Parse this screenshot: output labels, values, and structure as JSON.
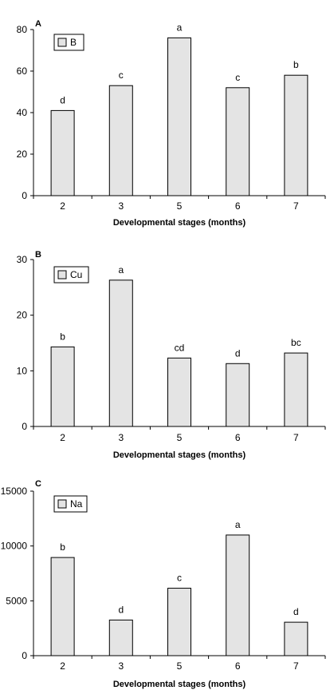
{
  "chart_data": [
    {
      "panel": "A",
      "type": "bar",
      "categories": [
        "2",
        "3",
        "5",
        "6",
        "7"
      ],
      "series": [
        {
          "name": "B",
          "values": [
            41,
            53,
            76,
            52,
            58
          ]
        }
      ],
      "significance": [
        "d",
        "c",
        "a",
        "c",
        "b"
      ],
      "xlabel": "Developmental stages  (months)",
      "ylabel": "",
      "ylim": [
        0,
        80
      ],
      "yticks": [
        "0",
        "20",
        "40",
        "60",
        "80"
      ],
      "grid": false,
      "legend_position": "top-left"
    },
    {
      "panel": "B",
      "type": "bar",
      "categories": [
        "2",
        "3",
        "5",
        "6",
        "7"
      ],
      "series": [
        {
          "name": "Cu",
          "values": [
            14.3,
            26.3,
            12.3,
            11.3,
            13.2
          ]
        }
      ],
      "significance": [
        "b",
        "a",
        "cd",
        "d",
        "bc"
      ],
      "xlabel": "Developmental stages  (months)",
      "ylabel": "",
      "ylim": [
        0,
        30
      ],
      "yticks": [
        "0",
        "10",
        "20",
        "30"
      ],
      "grid": false,
      "legend_position": "top-left"
    },
    {
      "panel": "C",
      "type": "bar",
      "categories": [
        "2",
        "3",
        "5",
        "6",
        "7"
      ],
      "series": [
        {
          "name": "Na",
          "values": [
            8950,
            3250,
            6150,
            11000,
            3050
          ]
        }
      ],
      "significance": [
        "b",
        "d",
        "c",
        "a",
        "d"
      ],
      "xlabel": "Developmental stages  (months)",
      "ylabel": "",
      "ylim": [
        0,
        15000
      ],
      "yticks": [
        "0",
        "5000",
        "10000",
        "15000"
      ],
      "grid": false,
      "legend_position": "top-left"
    }
  ]
}
